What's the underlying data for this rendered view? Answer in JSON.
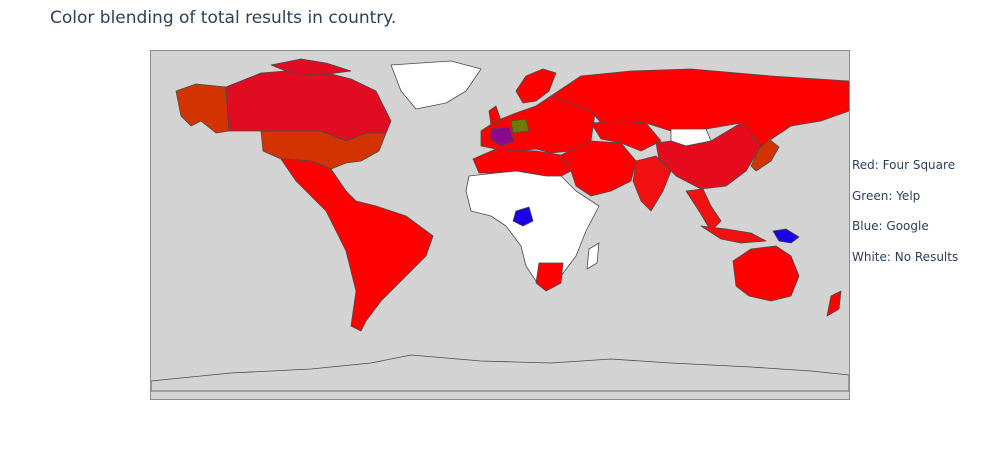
{
  "title": "Color blending of total results in country.",
  "legend": [
    {
      "text": "Red: Four Square",
      "color": "#ff0000"
    },
    {
      "text": "Green: Yelp",
      "color": "#00ff00"
    },
    {
      "text": "Blue: Google",
      "color": "#0000ff"
    },
    {
      "text": "White: No Results",
      "color": "#ffffff"
    }
  ],
  "map": {
    "projection": "equirectangular",
    "background_color": "#d3d3d3",
    "border_color": "#4a4a4a",
    "regions": [
      {
        "name": "canada",
        "color": "#e10b22"
      },
      {
        "name": "alaska",
        "color": "#d33300"
      },
      {
        "name": "usa",
        "color": "#d33300"
      },
      {
        "name": "greenland",
        "color": "#ffffff"
      },
      {
        "name": "latin-america",
        "color": "#ff0000"
      },
      {
        "name": "russia",
        "color": "#ff0000"
      },
      {
        "name": "europe",
        "color": "#ff0000"
      },
      {
        "name": "france",
        "color": "#8b0a8b"
      },
      {
        "name": "germany",
        "color": "#6b7d00"
      },
      {
        "name": "middle-east",
        "color": "#ff0000"
      },
      {
        "name": "india",
        "color": "#f21010"
      },
      {
        "name": "china",
        "color": "#e60b1c"
      },
      {
        "name": "mongolia",
        "color": "#ffffff"
      },
      {
        "name": "southeast-asia",
        "color": "#f21010"
      },
      {
        "name": "japan",
        "color": "#d33300"
      },
      {
        "name": "australia",
        "color": "#ff0000"
      },
      {
        "name": "new-guinea",
        "color": "#1a00e6"
      },
      {
        "name": "africa-north",
        "color": "#ff0000"
      },
      {
        "name": "africa-no-results",
        "color": "#ffffff"
      },
      {
        "name": "cameroon",
        "color": "#1a00e6"
      },
      {
        "name": "south-africa",
        "color": "#ff0000"
      },
      {
        "name": "antarctica",
        "color": "#d3d3d3"
      }
    ]
  }
}
